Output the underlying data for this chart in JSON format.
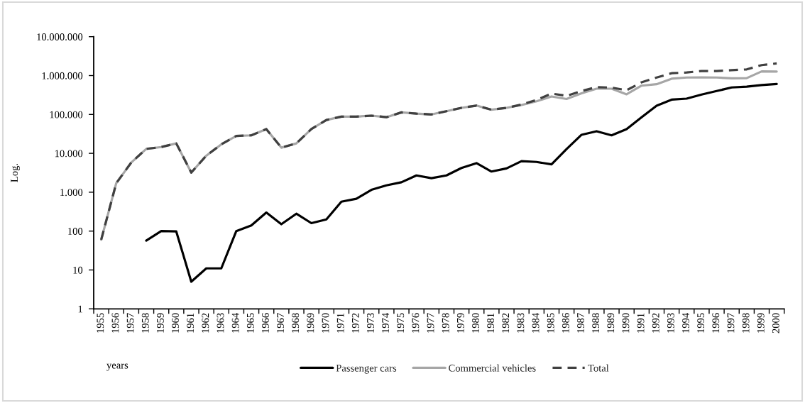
{
  "chart_data": {
    "type": "line",
    "ylabel": "Log.",
    "xlabel": "years",
    "categories": [
      "1955",
      "1956",
      "1957",
      "1958",
      "1959",
      "1960",
      "1961",
      "1962",
      "1963",
      "1964",
      "1965",
      "1966",
      "1967",
      "1968",
      "1969",
      "1970",
      "1971",
      "1972",
      "1973",
      "1974",
      "1975",
      "1976",
      "1977",
      "1978",
      "1979",
      "1980",
      "1981",
      "1982",
      "1983",
      "1984",
      "1985",
      "1986",
      "1987",
      "1988",
      "1989",
      "1990",
      "1991",
      "1992",
      "1993",
      "1994",
      "1995",
      "1996",
      "1997",
      "1998",
      "1999",
      "2000"
    ],
    "series": [
      {
        "name": "Passenger cars",
        "color": "#000000",
        "line_style": "solid",
        "values": [
          null,
          null,
          null,
          57,
          100,
          98,
          5,
          11,
          11,
          100,
          140,
          300,
          150,
          280,
          160,
          200,
          570,
          680,
          1150,
          1500,
          1800,
          2700,
          2300,
          2700,
          4200,
          5600,
          3400,
          4100,
          6300,
          6000,
          5200,
          12900,
          30000,
          37000,
          29000,
          42000,
          85000,
          168000,
          240000,
          255000,
          325000,
          400000,
          495000,
          520000,
          570000,
          605000
        ]
      },
      {
        "name": "Commercial vehicles",
        "color": "#a6a6a6",
        "line_style": "solid",
        "values": [
          60,
          1700,
          5800,
          13000,
          14500,
          18000,
          3200,
          8700,
          17000,
          28000,
          29000,
          42000,
          14000,
          18000,
          42000,
          72000,
          88000,
          88000,
          93000,
          85000,
          113000,
          105000,
          100000,
          121000,
          148000,
          169000,
          132000,
          148000,
          175000,
          218000,
          290000,
          250000,
          350000,
          460000,
          460000,
          330000,
          550000,
          600000,
          830000,
          890000,
          900000,
          890000,
          850000,
          860000,
          1280000,
          1270000
        ]
      },
      {
        "name": "Total",
        "color": "#404040",
        "line_style": "dashed",
        "values": [
          60,
          1700,
          5800,
          13000,
          14500,
          18000,
          3200,
          8700,
          17000,
          28000,
          29000,
          42000,
          14000,
          18000,
          42000,
          72000,
          88000,
          88000,
          93000,
          85000,
          113000,
          105000,
          100000,
          121000,
          148000,
          169000,
          132000,
          148000,
          180000,
          235000,
          345000,
          300000,
          400000,
          505000,
          490000,
          420000,
          670000,
          890000,
          1150000,
          1200000,
          1310000,
          1310000,
          1380000,
          1440000,
          1860000,
          2050000
        ]
      }
    ],
    "log": true,
    "ylim": [
      1,
      10000000
    ],
    "yticks": [
      1,
      10,
      100,
      {
        "value": 1000,
        "label": "1.000"
      },
      {
        "value": 10000,
        "label": "10.000"
      },
      {
        "value": 100000,
        "label": "100.000"
      },
      {
        "value": 1000000,
        "label": "1.000.000"
      },
      {
        "value": 10000000,
        "label": "10.000.000"
      }
    ],
    "marker": "none",
    "legend": "bottom"
  }
}
